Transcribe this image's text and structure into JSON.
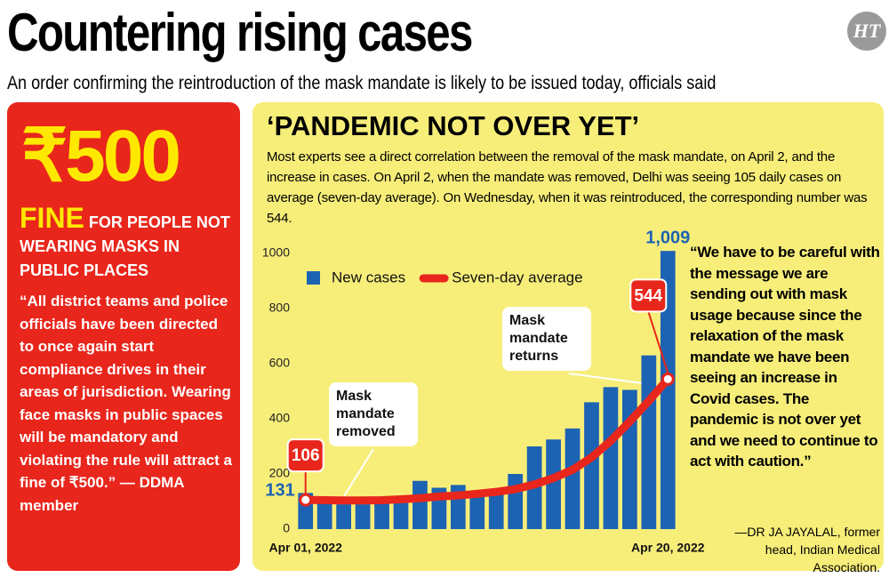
{
  "header": {
    "title": "Countering rising cases",
    "subtitle": "An order confirming the reintroduction of the mask mandate is likely to be issued today, officials said",
    "logo": "HT"
  },
  "fine_box": {
    "amount": "₹500",
    "fine": "FINE",
    "fine_text": "FOR PEOPLE NOT WEARING MASKS IN PUBLIC PLACES",
    "quote": "“All district teams and police officials have been directed to once again start compliance drives in their areas of jurisdiction. Wearing face masks in public spaces will be mandatory and violating the rule will attract a fine of ₹500.” — DDMA member"
  },
  "panel": {
    "heading": "‘PANDEMIC NOT OVER YET’",
    "body": "Most experts see a direct correlation between the removal of the mask mandate, on April 2, and the increase in cases. On April 2, when the mandate was removed, Delhi was seeing 105 daily cases on average (seven-day average). On Wednesday, when it was reintroduced, the corresponding number was 544.",
    "quote": "“We have to be careful with the message we are sending out with mask usage because since the relaxation of the mask mandate we have been seeing an increase in Covid cases. The pandemic is not over yet and we need to continue to act with caution.”",
    "attribution": "—DR JA JAYALAL, former head, Indian Medical Association."
  },
  "chart_data": {
    "type": "bar",
    "categories": [
      "Apr 01, 2022",
      null,
      null,
      null,
      null,
      null,
      null,
      null,
      null,
      null,
      null,
      null,
      null,
      null,
      null,
      null,
      null,
      null,
      null,
      "Apr 20, 2022"
    ],
    "series": [
      {
        "name": "New cases",
        "type": "bar",
        "color": "#1d63b3",
        "values": [
          131,
          100,
          90,
          90,
          105,
          120,
          175,
          150,
          160,
          135,
          145,
          200,
          300,
          325,
          365,
          460,
          515,
          505,
          630,
          1009
        ],
        "value_labels": [
          "131",
          null,
          null,
          null,
          null,
          null,
          null,
          null,
          null,
          null,
          null,
          null,
          null,
          null,
          null,
          null,
          null,
          null,
          null,
          "1,009"
        ]
      },
      {
        "name": "Seven-day average",
        "type": "line",
        "color": "#e8261c",
        "values": [
          106,
          105,
          104,
          104,
          105,
          108,
          112,
          118,
          122,
          128,
          135,
          145,
          162,
          185,
          215,
          260,
          320,
          390,
          465,
          544
        ]
      }
    ],
    "annotations": [
      "Mask mandate removed",
      "Mask mandate returns"
    ],
    "ylim": [
      0,
      1087
    ],
    "yticks": [
      0,
      200,
      400,
      600,
      800,
      1000
    ],
    "grid": false,
    "legend": "top-left"
  }
}
